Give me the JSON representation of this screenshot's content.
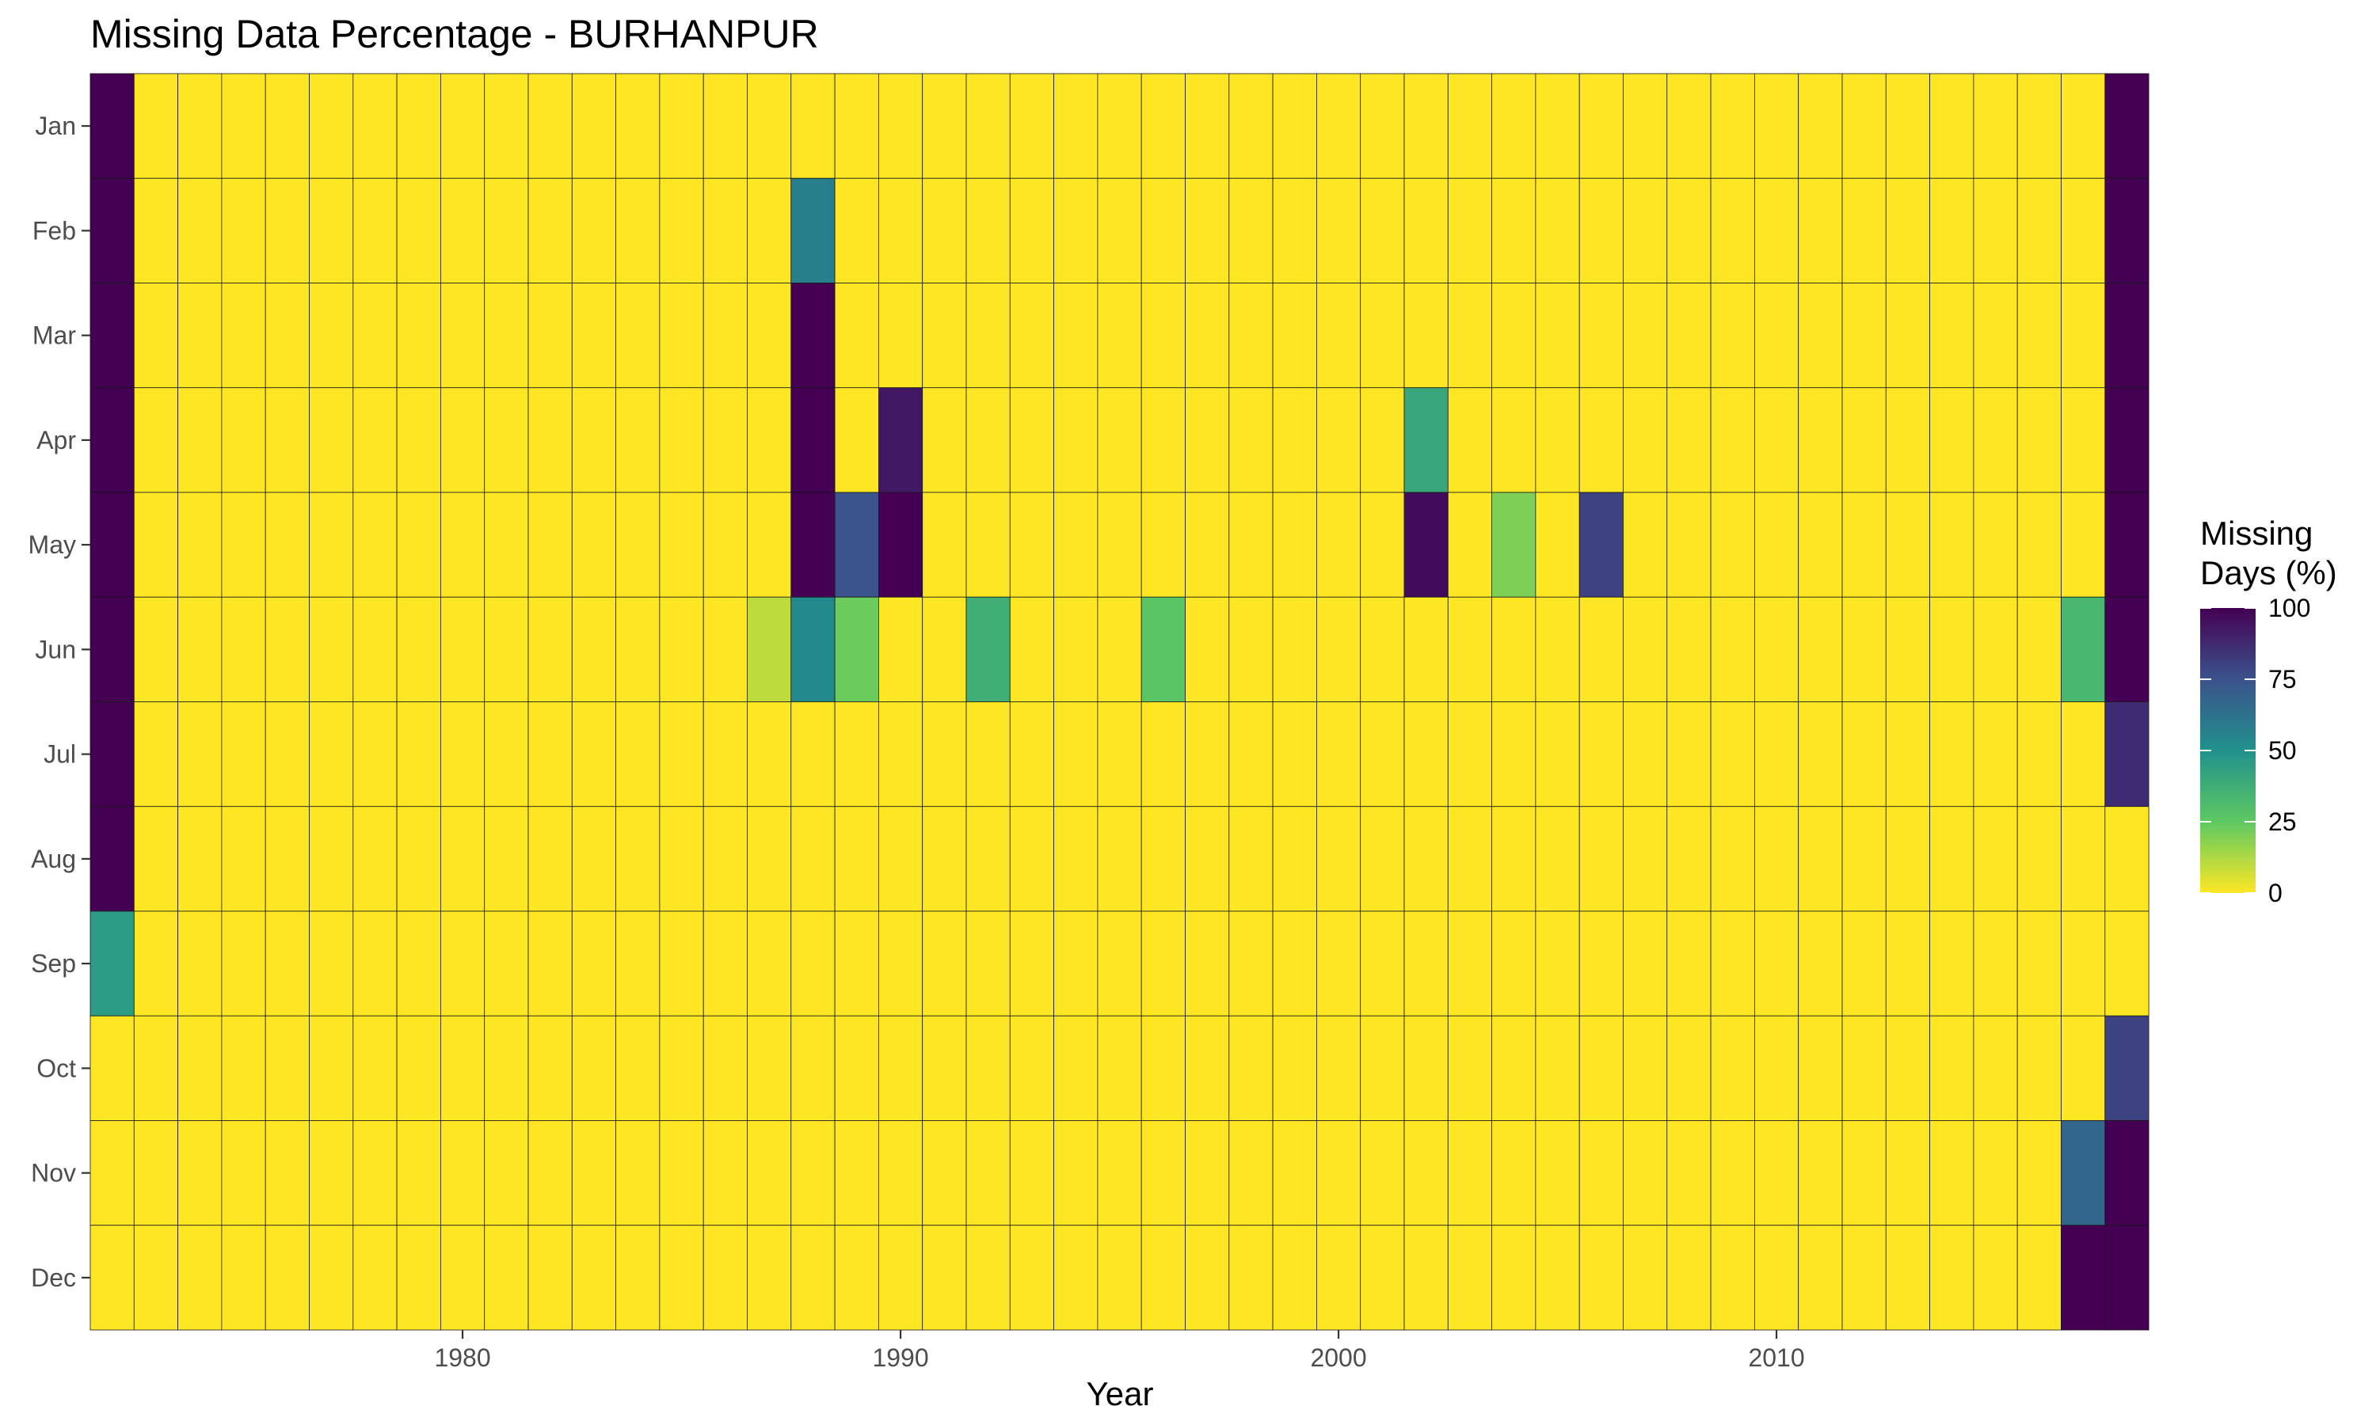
{
  "chart_data": {
    "type": "heatmap",
    "title": "Missing Data Percentage - BURHANPUR",
    "xlabel": "Year",
    "ylabel": "",
    "x_range": [
      1972,
      2018
    ],
    "x_ticks": [
      1980,
      1990,
      2000,
      2010
    ],
    "months": [
      "Jan",
      "Feb",
      "Mar",
      "Apr",
      "May",
      "Jun",
      "Jul",
      "Aug",
      "Sep",
      "Oct",
      "Nov",
      "Dec"
    ],
    "default_value": 0,
    "legend": {
      "title_lines": [
        "Missing",
        "Days (%)"
      ],
      "ticks": [
        0,
        25,
        50,
        75,
        100
      ],
      "range": [
        0,
        100
      ],
      "placement": "right"
    },
    "colorscale": [
      "#fde725",
      "#5ec962",
      "#21918c",
      "#3b528b",
      "#440154"
    ],
    "grid": false,
    "nonzero_cells": [
      {
        "year": 1972,
        "month": "Jan",
        "value": 100
      },
      {
        "year": 1972,
        "month": "Feb",
        "value": 100
      },
      {
        "year": 1972,
        "month": "Mar",
        "value": 100
      },
      {
        "year": 1972,
        "month": "Apr",
        "value": 100
      },
      {
        "year": 1972,
        "month": "May",
        "value": 100
      },
      {
        "year": 1972,
        "month": "Jun",
        "value": 100
      },
      {
        "year": 1972,
        "month": "Jul",
        "value": 100
      },
      {
        "year": 1972,
        "month": "Aug",
        "value": 100
      },
      {
        "year": 1972,
        "month": "Sep",
        "value": 45
      },
      {
        "year": 1987,
        "month": "Jun",
        "value": 10
      },
      {
        "year": 1988,
        "month": "Feb",
        "value": 57
      },
      {
        "year": 1988,
        "month": "Mar",
        "value": 100
      },
      {
        "year": 1988,
        "month": "Apr",
        "value": 100
      },
      {
        "year": 1988,
        "month": "May",
        "value": 100
      },
      {
        "year": 1988,
        "month": "Jun",
        "value": 53
      },
      {
        "year": 1989,
        "month": "May",
        "value": 74
      },
      {
        "year": 1989,
        "month": "Jun",
        "value": 23
      },
      {
        "year": 1990,
        "month": "Apr",
        "value": 93
      },
      {
        "year": 1990,
        "month": "May",
        "value": 100
      },
      {
        "year": 1992,
        "month": "Jun",
        "value": 37
      },
      {
        "year": 1996,
        "month": "Jun",
        "value": 27
      },
      {
        "year": 2002,
        "month": "Apr",
        "value": 40
      },
      {
        "year": 2002,
        "month": "May",
        "value": 97
      },
      {
        "year": 2004,
        "month": "May",
        "value": 20
      },
      {
        "year": 2006,
        "month": "May",
        "value": 80
      },
      {
        "year": 2017,
        "month": "Jun",
        "value": 33
      },
      {
        "year": 2017,
        "month": "Nov",
        "value": 67
      },
      {
        "year": 2017,
        "month": "Dec",
        "value": 100
      },
      {
        "year": 2018,
        "month": "Jan",
        "value": 100
      },
      {
        "year": 2018,
        "month": "Feb",
        "value": 100
      },
      {
        "year": 2018,
        "month": "Mar",
        "value": 100
      },
      {
        "year": 2018,
        "month": "Apr",
        "value": 100
      },
      {
        "year": 2018,
        "month": "May",
        "value": 100
      },
      {
        "year": 2018,
        "month": "Jun",
        "value": 100
      },
      {
        "year": 2018,
        "month": "Jul",
        "value": 87
      },
      {
        "year": 2018,
        "month": "Oct",
        "value": 80
      },
      {
        "year": 2018,
        "month": "Nov",
        "value": 100
      },
      {
        "year": 2018,
        "month": "Dec",
        "value": 100
      }
    ]
  }
}
